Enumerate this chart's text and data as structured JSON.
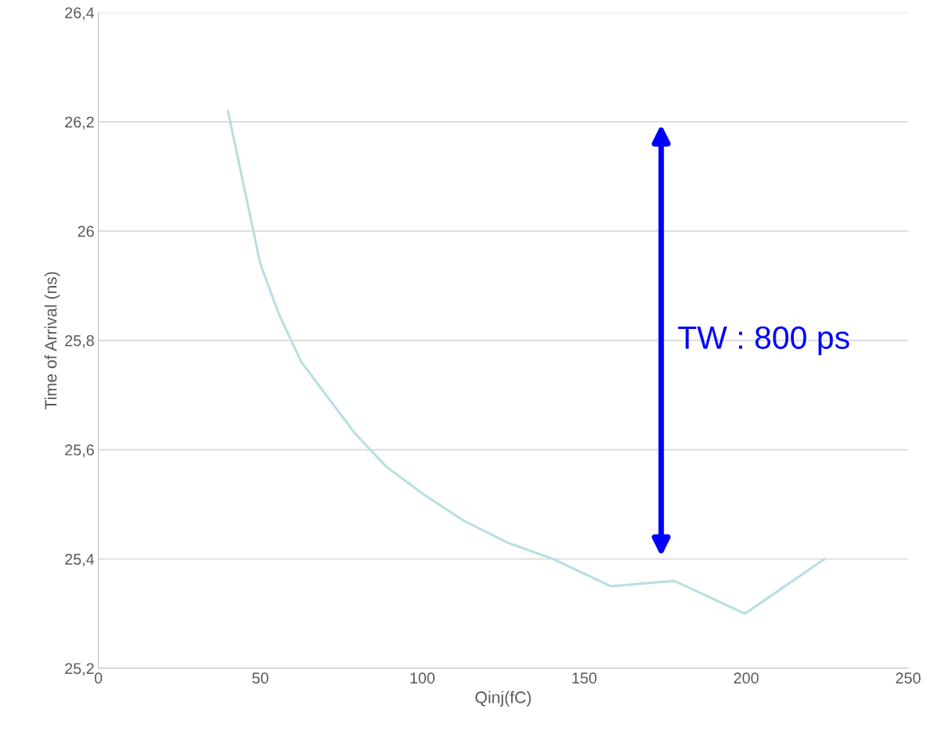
{
  "chart_data": {
    "type": "line",
    "xlabel": "Qinj(fC)",
    "ylabel": "Time of Arrival (ns)",
    "x": [
      40,
      50,
      55.6,
      62.7,
      79.2,
      88.7,
      100,
      112.8,
      126.3,
      140.4,
      158.3,
      177.7,
      199.6,
      224.2
    ],
    "series": [
      {
        "color": "#b9dfe3",
        "values": [
          26.22,
          25.94,
          25.85,
          25.76,
          25.63,
          25.57,
          25.52,
          25.47,
          25.43,
          25.4,
          25.35,
          25.36,
          25.3,
          25.4
        ]
      }
    ],
    "xlim": [
      0,
      250
    ],
    "xticks": [
      0,
      50,
      100,
      150,
      200,
      250
    ],
    "ylim": [
      25.2,
      26.4
    ],
    "yticks": [
      {
        "value": 25.2,
        "label": "25,2"
      },
      {
        "value": 25.4,
        "label": "25,4"
      },
      {
        "value": 25.6,
        "label": "25,6"
      },
      {
        "value": 25.8,
        "label": "25,8"
      },
      {
        "value": 26,
        "label": "26"
      },
      {
        "value": 26.2,
        "label": "26,2"
      },
      {
        "value": 26.4,
        "label": "26,4"
      }
    ],
    "grid": "y",
    "legend": false,
    "marker": "none",
    "line_style": "solid",
    "annotations": [
      "TW : 800 ps"
    ]
  }
}
